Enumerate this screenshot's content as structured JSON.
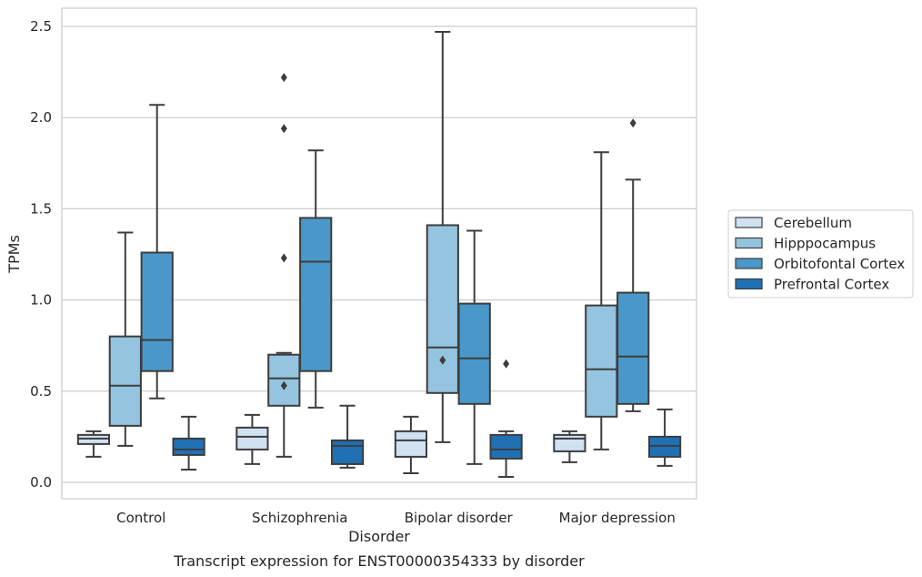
{
  "chart_data": {
    "type": "box",
    "caption": "Transcript expression for ENST00000354333 by disorder",
    "xlabel": "Disorder",
    "ylabel": "TPMs",
    "ylim": [
      -0.09,
      2.6
    ],
    "yticks": [
      "0.0",
      "0.5",
      "1.0",
      "1.5",
      "2.0",
      "2.5"
    ],
    "ytick_values": [
      0,
      0.5,
      1.0,
      1.5,
      2.0,
      2.5
    ],
    "grid": true,
    "legend_position": "right",
    "categories": [
      "Control",
      "Schizophrenia",
      "Bipolar disorder",
      "Major depression"
    ],
    "series": [
      {
        "name": "Cerebellum",
        "color": "#d0e1f2",
        "boxes": [
          {
            "whislo": 0.14,
            "q1": 0.21,
            "med": 0.24,
            "q3": 0.26,
            "whishi": 0.28,
            "fliers": []
          },
          {
            "whislo": 0.1,
            "q1": 0.18,
            "med": 0.25,
            "q3": 0.3,
            "whishi": 0.37,
            "fliers": []
          },
          {
            "whislo": 0.05,
            "q1": 0.14,
            "med": 0.23,
            "q3": 0.28,
            "whishi": 0.36,
            "fliers": []
          },
          {
            "whislo": 0.11,
            "q1": 0.17,
            "med": 0.24,
            "q3": 0.26,
            "whishi": 0.28,
            "fliers": []
          }
        ]
      },
      {
        "name": "Hipppocampus",
        "color": "#94c4df",
        "boxes": [
          {
            "whislo": 0.2,
            "q1": 0.31,
            "med": 0.53,
            "q3": 0.8,
            "whishi": 1.37,
            "fliers": []
          },
          {
            "whislo": 0.14,
            "q1": 0.42,
            "med": 0.57,
            "q3": 0.7,
            "whishi": 0.71,
            "fliers": [
              0.53,
              1.23,
              1.94,
              2.22
            ]
          },
          {
            "whislo": 0.22,
            "q1": 0.49,
            "med": 0.74,
            "q3": 1.41,
            "whishi": 2.47,
            "fliers": [
              0.67
            ]
          },
          {
            "whislo": 0.18,
            "q1": 0.36,
            "med": 0.62,
            "q3": 0.97,
            "whishi": 1.81,
            "fliers": []
          }
        ]
      },
      {
        "name": "Orbitofontal Cortex",
        "color": "#4a98c9",
        "boxes": [
          {
            "whislo": 0.46,
            "q1": 0.61,
            "med": 0.78,
            "q3": 1.26,
            "whishi": 2.07,
            "fliers": []
          },
          {
            "whislo": 0.41,
            "q1": 0.61,
            "med": 1.21,
            "q3": 1.45,
            "whishi": 1.82,
            "fliers": []
          },
          {
            "whislo": 0.1,
            "q1": 0.43,
            "med": 0.68,
            "q3": 0.98,
            "whishi": 1.38,
            "fliers": []
          },
          {
            "whislo": 0.39,
            "q1": 0.43,
            "med": 0.69,
            "q3": 1.04,
            "whishi": 1.66,
            "fliers": [
              1.97
            ]
          }
        ]
      },
      {
        "name": "Prefrontal Cortex",
        "color": "#2070b4",
        "boxes": [
          {
            "whislo": 0.07,
            "q1": 0.15,
            "med": 0.18,
            "q3": 0.24,
            "whishi": 0.36,
            "fliers": []
          },
          {
            "whislo": 0.08,
            "q1": 0.1,
            "med": 0.2,
            "q3": 0.23,
            "whishi": 0.42,
            "fliers": []
          },
          {
            "whislo": 0.03,
            "q1": 0.13,
            "med": 0.18,
            "q3": 0.26,
            "whishi": 0.28,
            "fliers": [
              0.65
            ]
          },
          {
            "whislo": 0.09,
            "q1": 0.14,
            "med": 0.2,
            "q3": 0.25,
            "whishi": 0.4,
            "fliers": []
          }
        ]
      }
    ]
  }
}
